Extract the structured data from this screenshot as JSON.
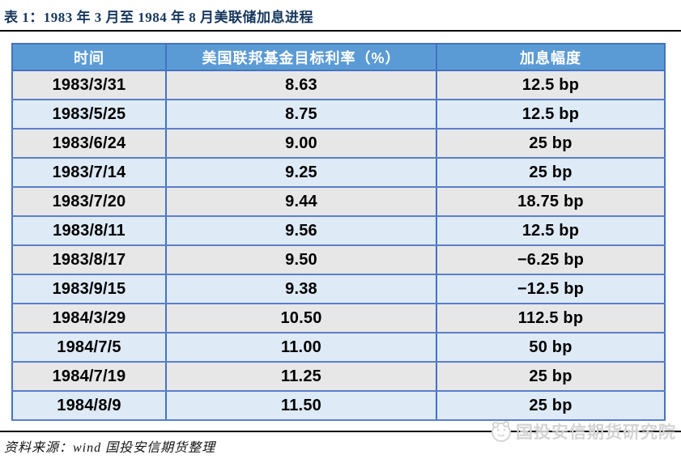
{
  "page": {
    "title": "表 1：1983 年 3 月至 1984 年 8 月美联储加息进程"
  },
  "table": {
    "headers": [
      "时间",
      "美国联邦基金目标利率（%）",
      "加息幅度"
    ],
    "rows": [
      {
        "date": "1983/3/31",
        "rate": "8.63",
        "change": "12.5 bp"
      },
      {
        "date": "1983/5/25",
        "rate": "8.75",
        "change": "12.5 bp"
      },
      {
        "date": "1983/6/24",
        "rate": "9.00",
        "change": "25 bp"
      },
      {
        "date": "1983/7/14",
        "rate": "9.25",
        "change": "25 bp"
      },
      {
        "date": "1983/7/20",
        "rate": "9.44",
        "change": "18.75 bp"
      },
      {
        "date": "1983/8/11",
        "rate": "9.56",
        "change": "12.5 bp"
      },
      {
        "date": "1983/8/17",
        "rate": "9.50",
        "change": "−6.25 bp"
      },
      {
        "date": "1983/9/15",
        "rate": "9.38",
        "change": "−12.5 bp"
      },
      {
        "date": "1984/3/29",
        "rate": "10.50",
        "change": "112.5 bp"
      },
      {
        "date": "1984/7/5",
        "rate": "11.00",
        "change": "50 bp"
      },
      {
        "date": "1984/7/19",
        "rate": "11.25",
        "change": "25 bp"
      },
      {
        "date": "1984/8/9",
        "rate": "11.50",
        "change": "25 bp"
      }
    ]
  },
  "footer": {
    "source": "资料来源：wind 国投安信期货整理"
  },
  "branding": {
    "institute": "国投安信期货研究院",
    "logo_icon": "panda-circle-logo"
  },
  "colors": {
    "title_text": "#17375E",
    "header_bg": "#5B9BD5",
    "header_text": "#FFFFFF",
    "border_blue": "#4472C4",
    "row_line": "#5B7EC9",
    "row_gray": "#E7E7E7",
    "row_blue": "#DEEAF6",
    "brand_gray": "#D4D4D4"
  }
}
